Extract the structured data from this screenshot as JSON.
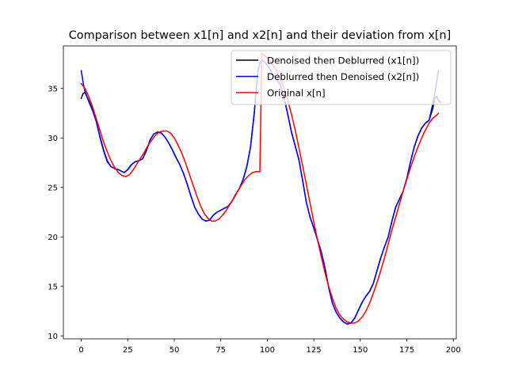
{
  "chart_data": {
    "type": "line",
    "title": "Comparison between x1[n] and x2[n] and their deviation from x[n]",
    "xlabel": "",
    "ylabel": "",
    "xlim": [
      -9.6,
      201.6
    ],
    "ylim": [
      9.7,
      39.3
    ],
    "xticks": [
      0,
      25,
      50,
      75,
      100,
      125,
      150,
      175,
      200
    ],
    "yticks": [
      10,
      15,
      20,
      25,
      30,
      35
    ],
    "grid": false,
    "legend_position": "top-right",
    "series": [
      {
        "name": "Denoised then Deblurred (x1[n])",
        "color": "#000000",
        "points": [
          [
            0,
            34.0
          ],
          [
            1,
            34.5
          ],
          [
            2,
            34.6
          ],
          [
            4,
            33.8
          ],
          [
            6,
            32.9
          ],
          [
            8,
            31.8
          ],
          [
            10,
            30.2
          ],
          [
            12,
            28.8
          ],
          [
            14,
            27.7
          ],
          [
            16,
            27.1
          ],
          [
            18,
            26.9
          ],
          [
            20,
            26.8
          ],
          [
            22,
            26.6
          ],
          [
            23,
            26.5
          ],
          [
            25,
            26.8
          ],
          [
            27,
            27.3
          ],
          [
            29,
            27.6
          ],
          [
            31,
            27.7
          ],
          [
            33,
            27.9
          ],
          [
            35,
            28.7
          ],
          [
            37,
            29.8
          ],
          [
            39,
            30.4
          ],
          [
            41,
            30.6
          ],
          [
            43,
            30.5
          ],
          [
            45,
            30.1
          ],
          [
            47,
            29.5
          ],
          [
            49,
            28.8
          ],
          [
            51,
            28.0
          ],
          [
            53,
            27.3
          ],
          [
            55,
            26.4
          ],
          [
            57,
            25.3
          ],
          [
            59,
            24.1
          ],
          [
            61,
            23.0
          ],
          [
            63,
            22.3
          ],
          [
            65,
            21.8
          ],
          [
            67,
            21.6
          ],
          [
            69,
            21.7
          ],
          [
            71,
            22.2
          ],
          [
            73,
            22.5
          ],
          [
            75,
            22.7
          ],
          [
            77,
            22.9
          ],
          [
            79,
            23.1
          ],
          [
            81,
            23.6
          ],
          [
            83,
            24.3
          ],
          [
            85,
            24.9
          ],
          [
            87,
            25.8
          ],
          [
            89,
            27.1
          ],
          [
            91,
            29.1
          ],
          [
            93,
            32.5
          ],
          [
            94,
            34.8
          ],
          [
            95,
            36.8
          ],
          [
            96,
            37.6
          ],
          [
            97,
            37.9
          ],
          [
            99,
            37.6
          ],
          [
            101,
            37.1
          ],
          [
            103,
            36.4
          ],
          [
            105,
            35.9
          ],
          [
            107,
            35.4
          ],
          [
            109,
            34.1
          ],
          [
            111,
            32.4
          ],
          [
            113,
            30.6
          ],
          [
            115,
            29.2
          ],
          [
            117,
            27.8
          ],
          [
            119,
            25.7
          ],
          [
            121,
            23.5
          ],
          [
            123,
            22.0
          ],
          [
            125,
            20.9
          ],
          [
            127,
            19.7
          ],
          [
            129,
            18.5
          ],
          [
            131,
            16.9
          ],
          [
            133,
            14.9
          ],
          [
            135,
            13.3
          ],
          [
            137,
            12.4
          ],
          [
            139,
            11.8
          ],
          [
            141,
            11.4
          ],
          [
            143,
            11.2
          ],
          [
            145,
            11.3
          ],
          [
            147,
            11.8
          ],
          [
            149,
            12.6
          ],
          [
            151,
            13.4
          ],
          [
            153,
            14.0
          ],
          [
            155,
            14.5
          ],
          [
            157,
            15.3
          ],
          [
            159,
            16.6
          ],
          [
            161,
            17.9
          ],
          [
            163,
            19.0
          ],
          [
            165,
            20.0
          ],
          [
            167,
            21.6
          ],
          [
            169,
            23.0
          ],
          [
            171,
            23.8
          ],
          [
            173,
            24.6
          ],
          [
            175,
            25.9
          ],
          [
            177,
            27.6
          ],
          [
            179,
            29.1
          ],
          [
            181,
            30.2
          ],
          [
            183,
            31.0
          ],
          [
            185,
            31.5
          ],
          [
            187,
            31.8
          ],
          [
            189,
            33.0
          ],
          [
            190,
            34.0
          ],
          [
            191,
            34.2
          ],
          [
            192,
            33.8
          ],
          [
            193,
            33.6
          ]
        ]
      },
      {
        "name": "Deblurred then Denoised (x2[n])",
        "color": "#0000ff",
        "points": [
          [
            0,
            36.8
          ],
          [
            1,
            35.6
          ],
          [
            2,
            34.7
          ],
          [
            4,
            33.7
          ],
          [
            6,
            32.8
          ],
          [
            8,
            31.7
          ],
          [
            10,
            30.1
          ],
          [
            12,
            28.7
          ],
          [
            14,
            27.6
          ],
          [
            16,
            27.1
          ],
          [
            18,
            26.9
          ],
          [
            20,
            26.8
          ],
          [
            22,
            26.6
          ],
          [
            23,
            26.5
          ],
          [
            25,
            26.8
          ],
          [
            27,
            27.3
          ],
          [
            29,
            27.6
          ],
          [
            31,
            27.7
          ],
          [
            33,
            27.9
          ],
          [
            35,
            28.7
          ],
          [
            37,
            29.8
          ],
          [
            39,
            30.4
          ],
          [
            41,
            30.6
          ],
          [
            43,
            30.5
          ],
          [
            45,
            30.1
          ],
          [
            47,
            29.5
          ],
          [
            49,
            28.8
          ],
          [
            51,
            28.0
          ],
          [
            53,
            27.3
          ],
          [
            55,
            26.4
          ],
          [
            57,
            25.3
          ],
          [
            59,
            24.1
          ],
          [
            61,
            23.0
          ],
          [
            63,
            22.3
          ],
          [
            65,
            21.8
          ],
          [
            67,
            21.6
          ],
          [
            69,
            21.7
          ],
          [
            71,
            22.2
          ],
          [
            73,
            22.5
          ],
          [
            75,
            22.7
          ],
          [
            77,
            22.9
          ],
          [
            79,
            23.1
          ],
          [
            81,
            23.6
          ],
          [
            83,
            24.3
          ],
          [
            85,
            24.9
          ],
          [
            87,
            25.8
          ],
          [
            89,
            27.1
          ],
          [
            91,
            29.1
          ],
          [
            93,
            32.5
          ],
          [
            94,
            34.8
          ],
          [
            95,
            36.8
          ],
          [
            96,
            37.6
          ],
          [
            97,
            37.9
          ],
          [
            99,
            37.6
          ],
          [
            101,
            37.1
          ],
          [
            103,
            36.4
          ],
          [
            105,
            35.9
          ],
          [
            107,
            35.4
          ],
          [
            109,
            34.1
          ],
          [
            111,
            32.4
          ],
          [
            113,
            30.6
          ],
          [
            115,
            29.2
          ],
          [
            117,
            27.8
          ],
          [
            119,
            25.7
          ],
          [
            121,
            23.5
          ],
          [
            123,
            22.0
          ],
          [
            125,
            20.9
          ],
          [
            127,
            19.7
          ],
          [
            129,
            18.5
          ],
          [
            131,
            16.9
          ],
          [
            133,
            14.9
          ],
          [
            135,
            13.3
          ],
          [
            137,
            12.4
          ],
          [
            139,
            11.8
          ],
          [
            141,
            11.4
          ],
          [
            143,
            11.2
          ],
          [
            145,
            11.3
          ],
          [
            147,
            11.8
          ],
          [
            149,
            12.6
          ],
          [
            151,
            13.4
          ],
          [
            153,
            14.0
          ],
          [
            155,
            14.5
          ],
          [
            157,
            15.3
          ],
          [
            159,
            16.6
          ],
          [
            161,
            17.9
          ],
          [
            163,
            19.0
          ],
          [
            165,
            20.0
          ],
          [
            167,
            21.6
          ],
          [
            169,
            23.0
          ],
          [
            171,
            23.8
          ],
          [
            173,
            24.6
          ],
          [
            175,
            25.9
          ],
          [
            177,
            27.6
          ],
          [
            179,
            29.1
          ],
          [
            181,
            30.2
          ],
          [
            183,
            31.0
          ],
          [
            185,
            31.5
          ],
          [
            187,
            31.8
          ],
          [
            189,
            33.5
          ],
          [
            190,
            34.5
          ],
          [
            191,
            35.6
          ],
          [
            192,
            36.8
          ]
        ]
      },
      {
        "name": "Original x[n]",
        "color": "#ff0000",
        "points": [
          [
            0,
            35.5
          ],
          [
            2,
            35.0
          ],
          [
            4,
            34.2
          ],
          [
            6,
            33.2
          ],
          [
            8,
            32.0
          ],
          [
            10,
            30.8
          ],
          [
            12,
            29.6
          ],
          [
            14,
            28.6
          ],
          [
            16,
            27.7
          ],
          [
            18,
            27.0
          ],
          [
            20,
            26.5
          ],
          [
            22,
            26.2
          ],
          [
            24,
            26.1
          ],
          [
            26,
            26.3
          ],
          [
            28,
            26.8
          ],
          [
            30,
            27.4
          ],
          [
            32,
            28.0
          ],
          [
            34,
            28.6
          ],
          [
            36,
            29.3
          ],
          [
            38,
            29.8
          ],
          [
            40,
            30.3
          ],
          [
            42,
            30.6
          ],
          [
            44,
            30.7
          ],
          [
            46,
            30.7
          ],
          [
            48,
            30.5
          ],
          [
            50,
            30.0
          ],
          [
            52,
            29.3
          ],
          [
            54,
            28.5
          ],
          [
            56,
            27.5
          ],
          [
            58,
            26.4
          ],
          [
            60,
            25.3
          ],
          [
            62,
            24.2
          ],
          [
            64,
            23.2
          ],
          [
            66,
            22.4
          ],
          [
            68,
            21.9
          ],
          [
            70,
            21.6
          ],
          [
            72,
            21.6
          ],
          [
            74,
            21.8
          ],
          [
            76,
            22.2
          ],
          [
            78,
            22.7
          ],
          [
            80,
            23.3
          ],
          [
            82,
            23.9
          ],
          [
            84,
            24.6
          ],
          [
            86,
            25.2
          ],
          [
            88,
            25.8
          ],
          [
            90,
            26.2
          ],
          [
            92,
            26.5
          ],
          [
            94,
            26.6
          ],
          [
            96,
            26.6
          ],
          [
            96.5,
            32.0
          ],
          [
            97,
            38.5
          ],
          [
            99,
            38.3
          ],
          [
            101,
            37.9
          ],
          [
            103,
            37.4
          ],
          [
            105,
            36.8
          ],
          [
            107,
            36.0
          ],
          [
            109,
            35.0
          ],
          [
            111,
            33.8
          ],
          [
            113,
            32.4
          ],
          [
            115,
            30.8
          ],
          [
            117,
            29.0
          ],
          [
            119,
            27.2
          ],
          [
            121,
            25.3
          ],
          [
            123,
            23.4
          ],
          [
            125,
            21.5
          ],
          [
            127,
            19.7
          ],
          [
            129,
            18.0
          ],
          [
            131,
            16.4
          ],
          [
            133,
            15.0
          ],
          [
            135,
            13.8
          ],
          [
            137,
            12.8
          ],
          [
            139,
            12.1
          ],
          [
            141,
            11.7
          ],
          [
            143,
            11.4
          ],
          [
            145,
            11.3
          ],
          [
            147,
            11.3
          ],
          [
            149,
            11.5
          ],
          [
            151,
            11.9
          ],
          [
            153,
            12.5
          ],
          [
            155,
            13.3
          ],
          [
            157,
            14.3
          ],
          [
            159,
            15.4
          ],
          [
            161,
            16.6
          ],
          [
            163,
            17.9
          ],
          [
            165,
            19.3
          ],
          [
            167,
            20.7
          ],
          [
            169,
            22.0
          ],
          [
            171,
            23.3
          ],
          [
            173,
            24.6
          ],
          [
            175,
            25.8
          ],
          [
            177,
            27.0
          ],
          [
            179,
            28.1
          ],
          [
            181,
            29.1
          ],
          [
            183,
            30.0
          ],
          [
            185,
            30.8
          ],
          [
            187,
            31.5
          ],
          [
            189,
            32.0
          ],
          [
            191,
            32.3
          ],
          [
            192,
            32.5
          ]
        ]
      }
    ]
  }
}
